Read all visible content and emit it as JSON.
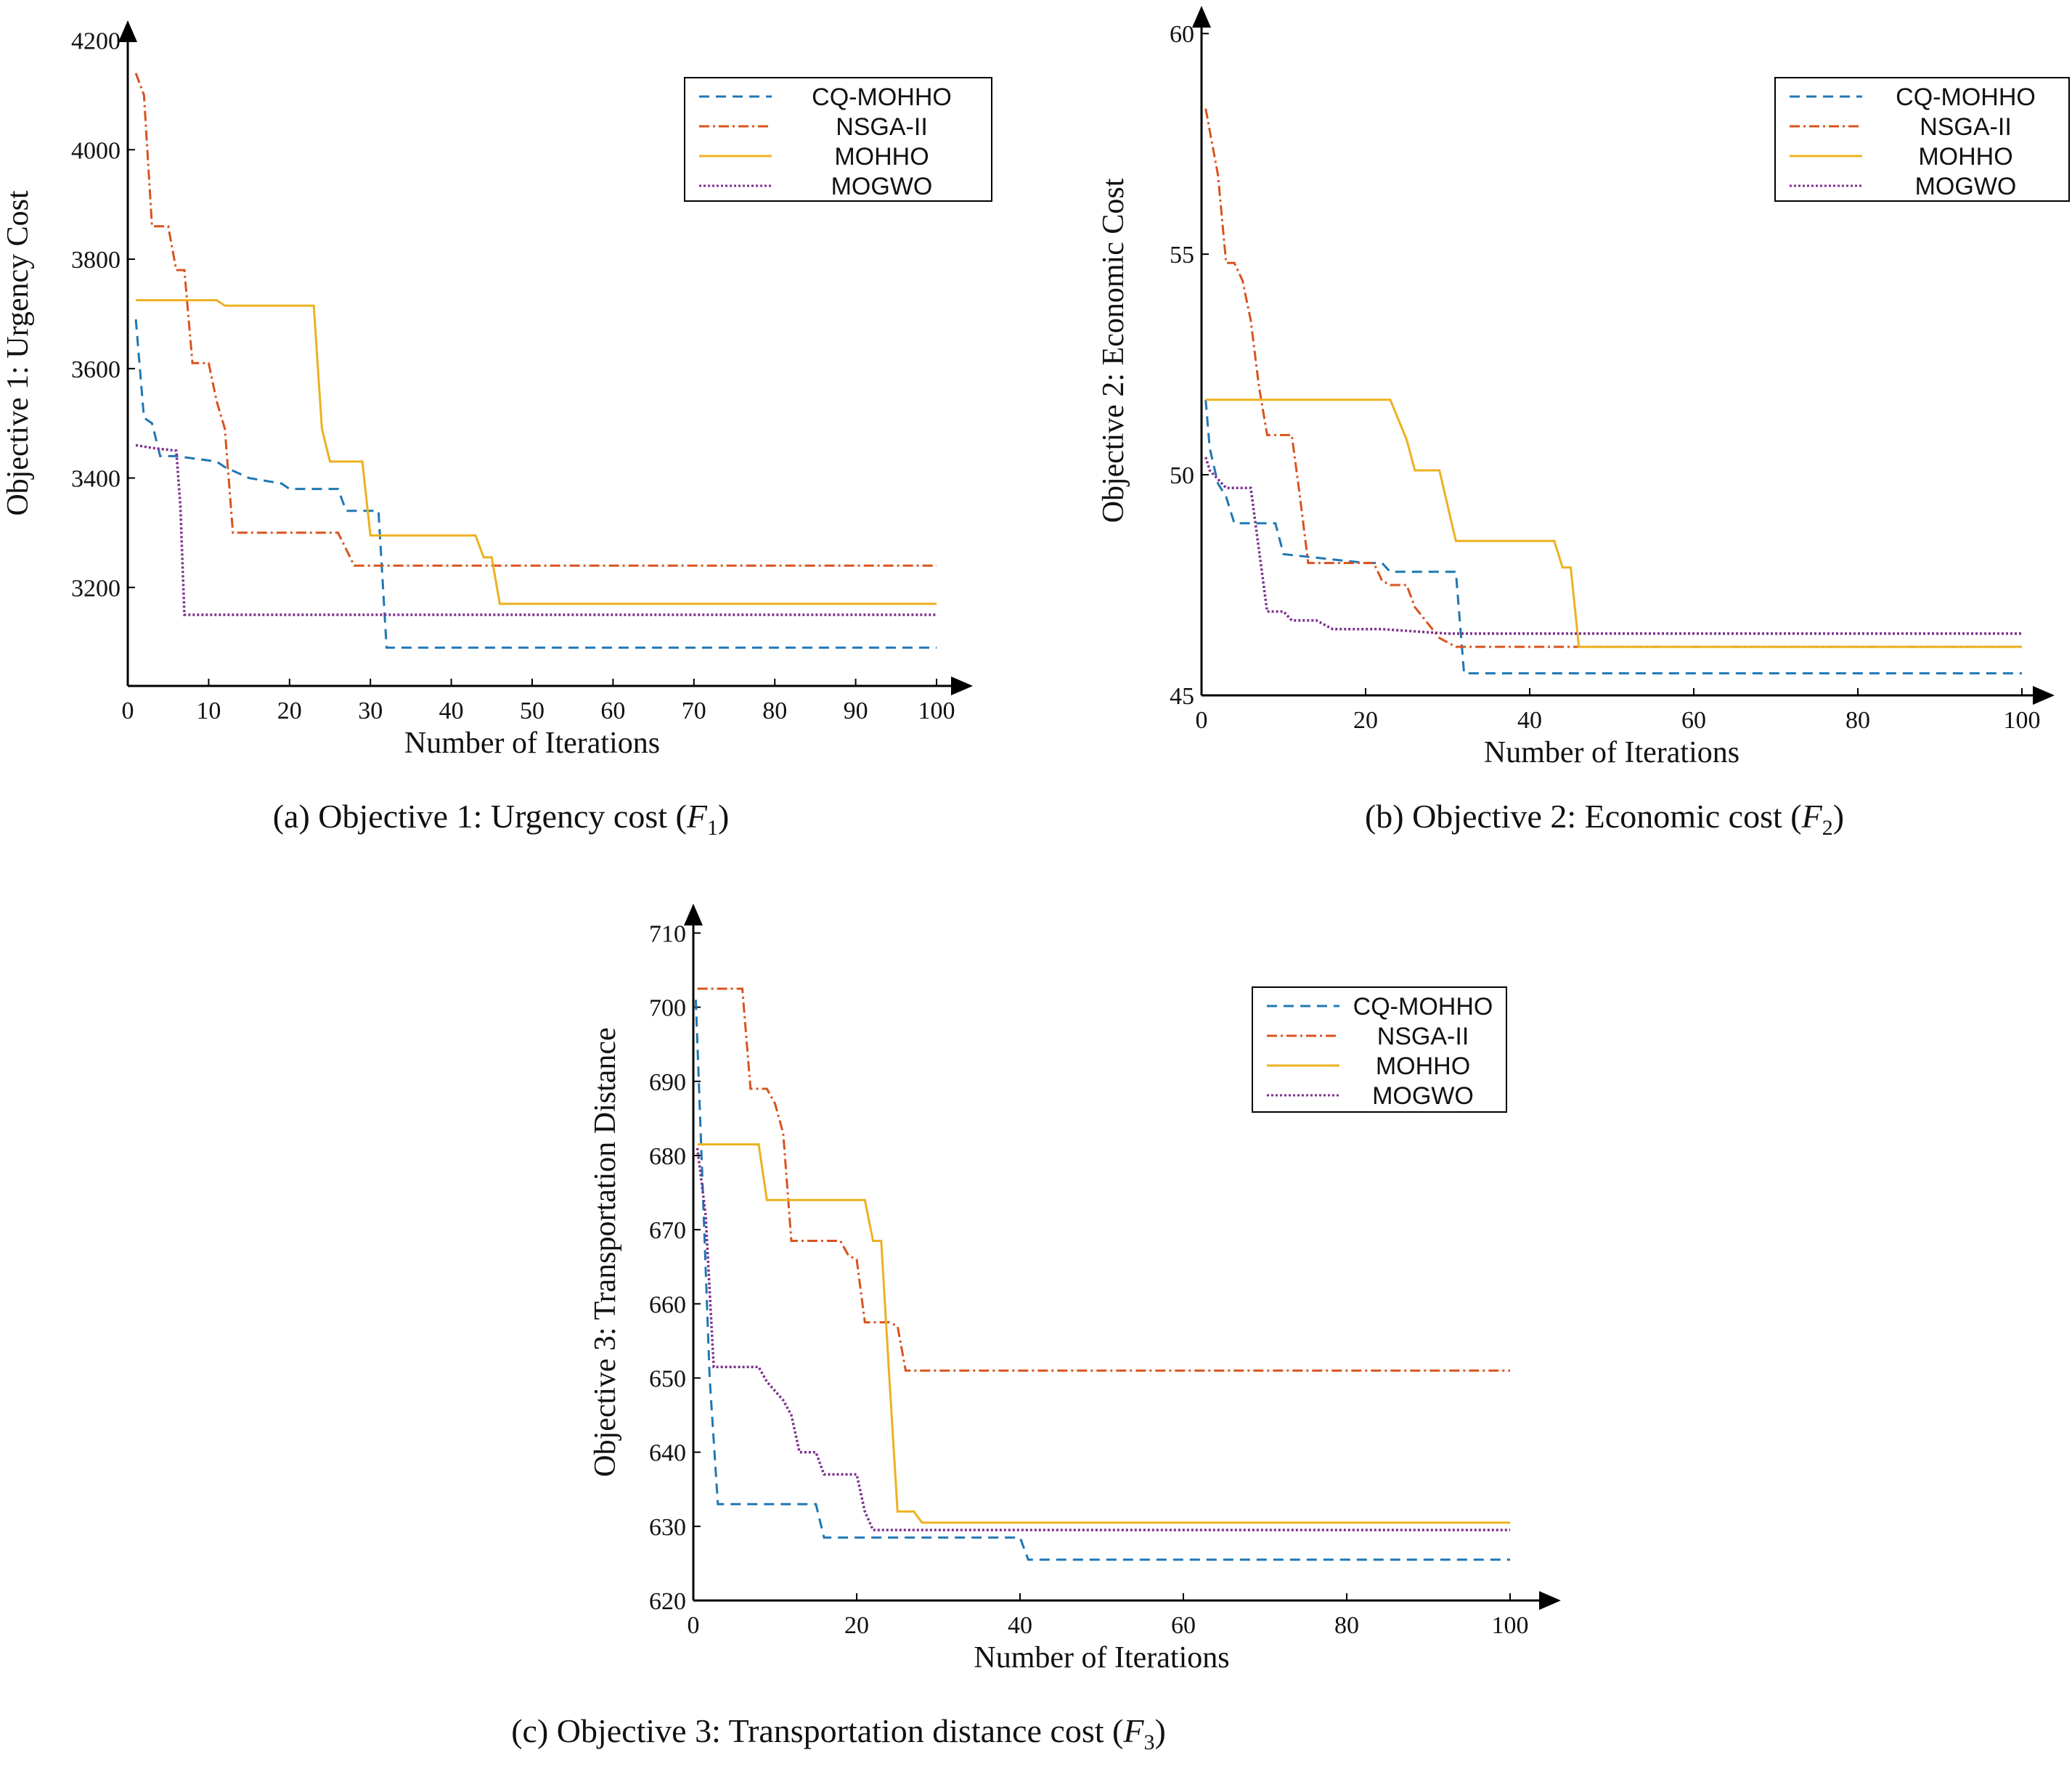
{
  "colors": {
    "CQ-MOHHO": "#1f77b4",
    "NSGA-II": "#d9531e",
    "MOHHO": "#edb120",
    "MOGWO": "#7e2f8e",
    "axis": "#000000"
  },
  "chart_data": [
    {
      "id": "a",
      "type": "line",
      "caption": {
        "prefix": "(a) Objective 1: Urgency cost (",
        "var": "F",
        "sub": "1",
        "suffix": ")"
      },
      "xlabel": "Number of Iterations",
      "ylabel": "Objective 1: Urgency Cost",
      "xlim": [
        0,
        100
      ],
      "ylim": [
        3020,
        4210
      ],
      "xticks": [
        0,
        10,
        20,
        30,
        40,
        50,
        60,
        70,
        80,
        90,
        100
      ],
      "yticks": [
        3200,
        3400,
        3600,
        3800,
        4000,
        4200
      ],
      "legend_position": "top-right",
      "series": [
        {
          "name": "CQ-MOHHO",
          "points": [
            [
              1,
              3690
            ],
            [
              2,
              3510
            ],
            [
              3,
              3500
            ],
            [
              4,
              3440
            ],
            [
              5,
              3440
            ],
            [
              6,
              3440
            ],
            [
              11,
              3430
            ],
            [
              12,
              3420
            ],
            [
              15,
              3400
            ],
            [
              19,
              3390
            ],
            [
              20,
              3380
            ],
            [
              26,
              3380
            ],
            [
              27,
              3340
            ],
            [
              30,
              3340
            ],
            [
              31,
              3340
            ],
            [
              32,
              3090
            ],
            [
              100,
              3090
            ]
          ]
        },
        {
          "name": "NSGA-II",
          "points": [
            [
              1,
              4140
            ],
            [
              2,
              4100
            ],
            [
              3,
              3860
            ],
            [
              5,
              3860
            ],
            [
              6,
              3780
            ],
            [
              7,
              3780
            ],
            [
              8,
              3610
            ],
            [
              10,
              3610
            ],
            [
              11,
              3540
            ],
            [
              12,
              3490
            ],
            [
              13,
              3300
            ],
            [
              26,
              3300
            ],
            [
              28,
              3240
            ],
            [
              100,
              3240
            ]
          ]
        },
        {
          "name": "MOHHO",
          "points": [
            [
              1,
              3725
            ],
            [
              11,
              3725
            ],
            [
              12,
              3715
            ],
            [
              23,
              3715
            ],
            [
              24,
              3490
            ],
            [
              25,
              3430
            ],
            [
              29,
              3430
            ],
            [
              30,
              3295
            ],
            [
              43,
              3295
            ],
            [
              44,
              3255
            ],
            [
              45,
              3255
            ],
            [
              46,
              3170
            ],
            [
              100,
              3170
            ]
          ]
        },
        {
          "name": "MOGWO",
          "points": [
            [
              1,
              3460
            ],
            [
              3,
              3455
            ],
            [
              6,
              3450
            ],
            [
              6.5,
              3350
            ],
            [
              7,
              3150
            ],
            [
              100,
              3150
            ]
          ]
        }
      ]
    },
    {
      "id": "b",
      "type": "line",
      "caption": {
        "prefix": "(b) Objective 2: Economic cost (",
        "var": "F",
        "sub": "2",
        "suffix": ")"
      },
      "xlabel": "Number of Iterations",
      "ylabel": "Objective 2: Economic Cost",
      "xlim": [
        0,
        100
      ],
      "ylim": [
        45,
        60.3
      ],
      "xticks": [
        0,
        20,
        40,
        60,
        80,
        100
      ],
      "yticks": [
        45,
        50,
        55,
        60
      ],
      "legend_position": "top-right",
      "series": [
        {
          "name": "CQ-MOHHO",
          "points": [
            [
              0.5,
              51.7
            ],
            [
              1,
              50.6
            ],
            [
              2,
              49.8
            ],
            [
              3,
              49.5
            ],
            [
              4,
              48.9
            ],
            [
              9,
              48.9
            ],
            [
              10,
              48.2
            ],
            [
              20,
              48.0
            ],
            [
              22,
              48.0
            ],
            [
              23,
              47.8
            ],
            [
              31,
              47.8
            ],
            [
              32,
              45.5
            ],
            [
              100,
              45.5
            ]
          ]
        },
        {
          "name": "NSGA-II",
          "points": [
            [
              0.5,
              58.3
            ],
            [
              1,
              57.8
            ],
            [
              2,
              56.8
            ],
            [
              3,
              54.8
            ],
            [
              4,
              54.8
            ],
            [
              5,
              54.4
            ],
            [
              6,
              53.5
            ],
            [
              7,
              52.0
            ],
            [
              8,
              50.9
            ],
            [
              11,
              50.9
            ],
            [
              12,
              49.5
            ],
            [
              13,
              48.0
            ],
            [
              21,
              48.0
            ],
            [
              22,
              47.6
            ],
            [
              23,
              47.5
            ],
            [
              25,
              47.5
            ],
            [
              26,
              47.0
            ],
            [
              29,
              46.3
            ],
            [
              31,
              46.1
            ],
            [
              100,
              46.1
            ]
          ]
        },
        {
          "name": "MOHHO",
          "points": [
            [
              0.5,
              51.7
            ],
            [
              23,
              51.7
            ],
            [
              25,
              50.8
            ],
            [
              26,
              50.1
            ],
            [
              29,
              50.1
            ],
            [
              31,
              48.5
            ],
            [
              43,
              48.5
            ],
            [
              44,
              47.9
            ],
            [
              45,
              47.9
            ],
            [
              46,
              46.1
            ],
            [
              100,
              46.1
            ]
          ]
        },
        {
          "name": "MOGWO",
          "points": [
            [
              0.5,
              50.4
            ],
            [
              1,
              50.1
            ],
            [
              2,
              49.9
            ],
            [
              3,
              49.7
            ],
            [
              6,
              49.7
            ],
            [
              7,
              48.3
            ],
            [
              8,
              46.9
            ],
            [
              10,
              46.9
            ],
            [
              11,
              46.7
            ],
            [
              14,
              46.7
            ],
            [
              16,
              46.5
            ],
            [
              22,
              46.5
            ],
            [
              30,
              46.4
            ],
            [
              100,
              46.4
            ]
          ]
        }
      ]
    },
    {
      "id": "c",
      "type": "line",
      "caption": {
        "prefix": "(c) Objective 3: Transportation distance cost (",
        "var": "F",
        "sub": "3",
        "suffix": ")"
      },
      "xlabel": "Number of Iterations",
      "ylabel": "Objective 3: Transportation Distance",
      "xlim": [
        0,
        100
      ],
      "ylim": [
        620,
        712
      ],
      "xticks": [
        0,
        20,
        40,
        60,
        80,
        100
      ],
      "yticks": [
        620,
        630,
        640,
        650,
        660,
        670,
        680,
        690,
        700,
        710
      ],
      "legend_position": "top-right",
      "series": [
        {
          "name": "CQ-MOHHO",
          "points": [
            [
              0.3,
              701
            ],
            [
              1,
              680
            ],
            [
              2,
              650
            ],
            [
              3,
              633
            ],
            [
              15,
              633
            ],
            [
              16,
              628.5
            ],
            [
              40,
              628.5
            ],
            [
              41,
              625.5
            ],
            [
              100,
              625.5
            ]
          ]
        },
        {
          "name": "NSGA-II",
          "points": [
            [
              0.5,
              702.5
            ],
            [
              6,
              702.5
            ],
            [
              7,
              689
            ],
            [
              9,
              689
            ],
            [
              10,
              687
            ],
            [
              11,
              683
            ],
            [
              12,
              668.5
            ],
            [
              18,
              668.5
            ],
            [
              19,
              666.5
            ],
            [
              20,
              666
            ],
            [
              21,
              657.5
            ],
            [
              24,
              657.5
            ],
            [
              25,
              657
            ],
            [
              26,
              651
            ],
            [
              100,
              651
            ]
          ]
        },
        {
          "name": "MOHHO",
          "points": [
            [
              0.5,
              681.5
            ],
            [
              8,
              681.5
            ],
            [
              9,
              674
            ],
            [
              21,
              674
            ],
            [
              22,
              668.5
            ],
            [
              23,
              668.5
            ],
            [
              24,
              650
            ],
            [
              25,
              632
            ],
            [
              27,
              632
            ],
            [
              28,
              630.5
            ],
            [
              100,
              630.5
            ]
          ]
        },
        {
          "name": "MOGWO",
          "points": [
            [
              0.5,
              681
            ],
            [
              1.5,
              672
            ],
            [
              2.5,
              651.5
            ],
            [
              8,
              651.5
            ],
            [
              9,
              649.5
            ],
            [
              11,
              647
            ],
            [
              12,
              645
            ],
            [
              13,
              640
            ],
            [
              15,
              640
            ],
            [
              16,
              637
            ],
            [
              20,
              637
            ],
            [
              21,
              632
            ],
            [
              22,
              629.5
            ],
            [
              100,
              629.5
            ]
          ]
        }
      ]
    }
  ]
}
